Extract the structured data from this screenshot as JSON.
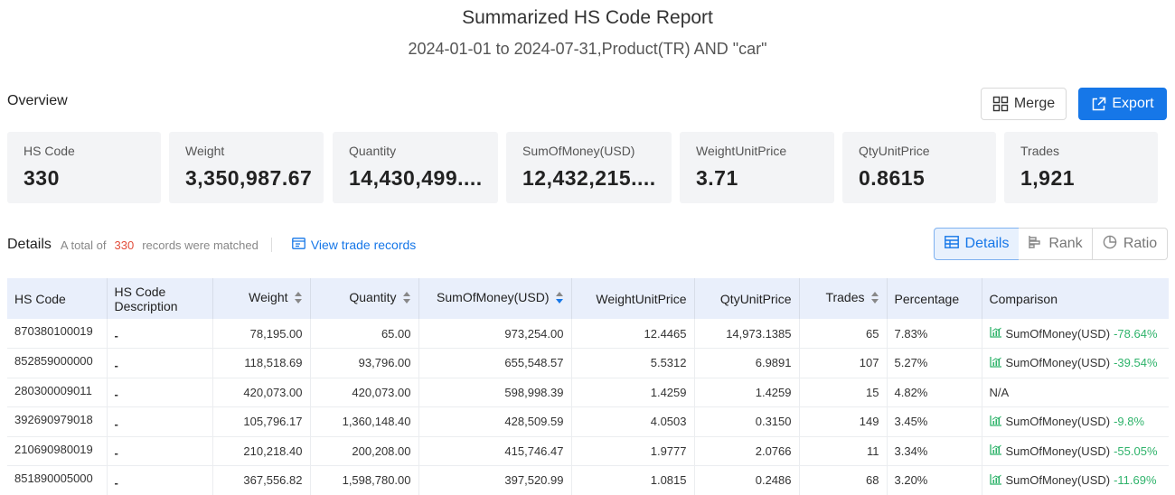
{
  "header": {
    "title": "Summarized HS Code Report",
    "subtitle": "2024-01-01 to 2024-07-31,Product(TR) AND \"car\""
  },
  "overview": {
    "label": "Overview",
    "merge_label": "Merge",
    "export_label": "Export",
    "cards": [
      {
        "label": "HS Code",
        "value": "330"
      },
      {
        "label": "Weight",
        "value": "3,350,987.67"
      },
      {
        "label": "Quantity",
        "value": "14,430,499...."
      },
      {
        "label": "SumOfMoney(USD)",
        "value": "12,432,215...."
      },
      {
        "label": "WeightUnitPrice",
        "value": "3.71"
      },
      {
        "label": "QtyUnitPrice",
        "value": "0.8615"
      },
      {
        "label": "Trades",
        "value": "1,921"
      }
    ]
  },
  "details": {
    "title": "Details",
    "total_prefix": "A total of",
    "total_count": "330",
    "total_suffix": "records were matched",
    "view_link": "View trade records",
    "views": {
      "details": "Details",
      "rank": "Rank",
      "ratio": "Ratio"
    }
  },
  "table": {
    "columns": [
      "HS Code",
      "HS Code Description",
      "Weight",
      "Quantity",
      "SumOfMoney(USD)",
      "WeightUnitPrice",
      "QtyUnitPrice",
      "Trades",
      "Percentage",
      "Comparison"
    ],
    "rows": [
      {
        "code": "870380100019",
        "desc": "-",
        "weight": "78,195.00",
        "quantity": "65.00",
        "money": "973,254.00",
        "wup": "12.4465",
        "qup": "14,973.1385",
        "trades": "65",
        "pct": "7.83%",
        "cmp_label": "SumOfMoney(USD)",
        "cmp_value": "-78.64%"
      },
      {
        "code": "852859000000",
        "desc": "-",
        "weight": "118,518.69",
        "quantity": "93,796.00",
        "money": "655,548.57",
        "wup": "5.5312",
        "qup": "6.9891",
        "trades": "107",
        "pct": "5.27%",
        "cmp_label": "SumOfMoney(USD)",
        "cmp_value": "-39.54%"
      },
      {
        "code": "280300009011",
        "desc": "-",
        "weight": "420,073.00",
        "quantity": "420,073.00",
        "money": "598,998.39",
        "wup": "1.4259",
        "qup": "1.4259",
        "trades": "15",
        "pct": "4.82%",
        "cmp_label": "N/A",
        "cmp_value": ""
      },
      {
        "code": "392690979018",
        "desc": "-",
        "weight": "105,796.17",
        "quantity": "1,360,148.40",
        "money": "428,509.59",
        "wup": "4.0503",
        "qup": "0.3150",
        "trades": "149",
        "pct": "3.45%",
        "cmp_label": "SumOfMoney(USD)",
        "cmp_value": "-9.8%"
      },
      {
        "code": "210690980019",
        "desc": "-",
        "weight": "210,218.40",
        "quantity": "200,208.00",
        "money": "415,746.47",
        "wup": "1.9777",
        "qup": "2.0766",
        "trades": "11",
        "pct": "3.34%",
        "cmp_label": "SumOfMoney(USD)",
        "cmp_value": "-55.05%"
      },
      {
        "code": "851890005000",
        "desc": "-",
        "weight": "367,556.82",
        "quantity": "1,598,780.00",
        "money": "397,520.99",
        "wup": "1.0815",
        "qup": "0.2486",
        "trades": "68",
        "pct": "3.20%",
        "cmp_label": "SumOfMoney(USD)",
        "cmp_value": "-11.69%"
      }
    ]
  },
  "colors": {
    "accent": "#1677e8",
    "negative_change": "#2fb36b",
    "count_highlight": "#e24c3a"
  }
}
